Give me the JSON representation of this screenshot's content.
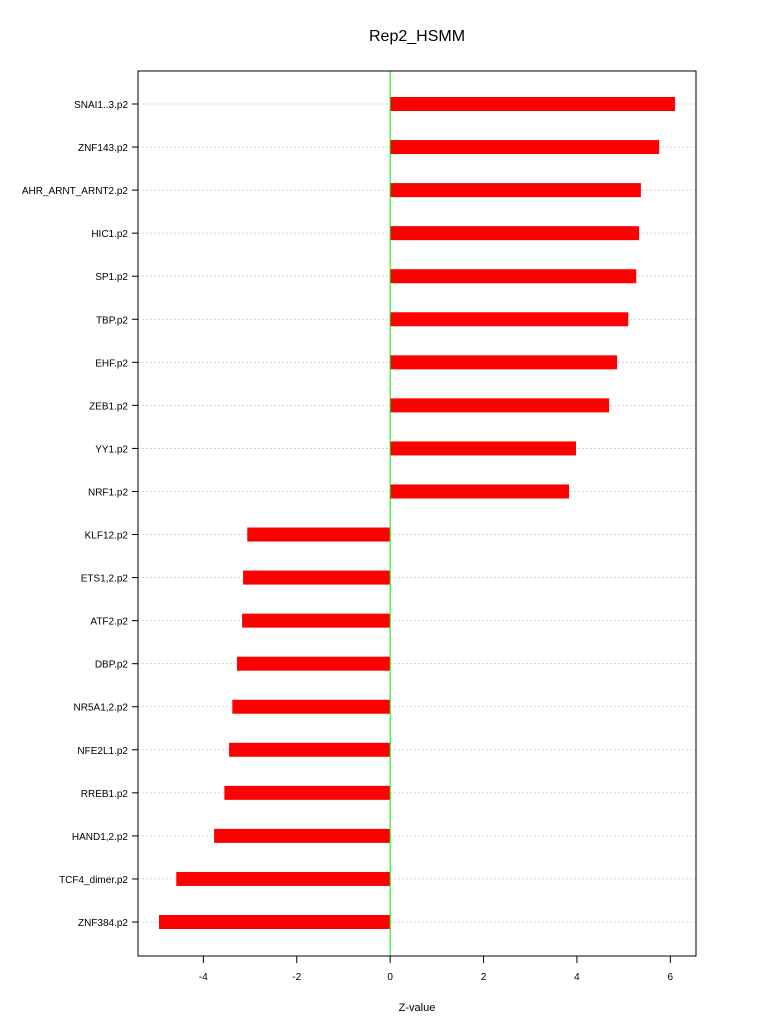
{
  "chart_data": {
    "type": "bar",
    "orientation": "horizontal",
    "title": "Rep2_HSMM",
    "xlabel": "Z-value",
    "ylabel": "",
    "xlim": [
      -5.4,
      6.55
    ],
    "xticks": [
      -4,
      -2,
      0,
      2,
      4,
      6
    ],
    "grid": true,
    "categories": [
      "SNAI1..3.p2",
      "ZNF143.p2",
      "AHR_ARNT_ARNT2.p2",
      "HIC1.p2",
      "SP1.p2",
      "TBP.p2",
      "EHF.p2",
      "ZEB1.p2",
      "YY1.p2",
      "NRF1.p2",
      "KLF12.p2",
      "ETS1,2.p2",
      "ATF2.p2",
      "DBP.p2",
      "NR5A1,2.p2",
      "NFE2L1.p2",
      "RREB1.p2",
      "HAND1,2.p2",
      "TCF4_dimer.p2",
      "ZNF384.p2"
    ],
    "values": [
      6.1,
      5.76,
      5.37,
      5.33,
      5.27,
      5.1,
      4.86,
      4.69,
      3.98,
      3.83,
      -3.06,
      -3.15,
      -3.17,
      -3.28,
      -3.38,
      -3.45,
      -3.55,
      -3.77,
      -4.58,
      -4.95
    ],
    "colors": {
      "bar": "#ff0000",
      "zero_line": "#00ee00",
      "grid": "#cccccc"
    }
  }
}
